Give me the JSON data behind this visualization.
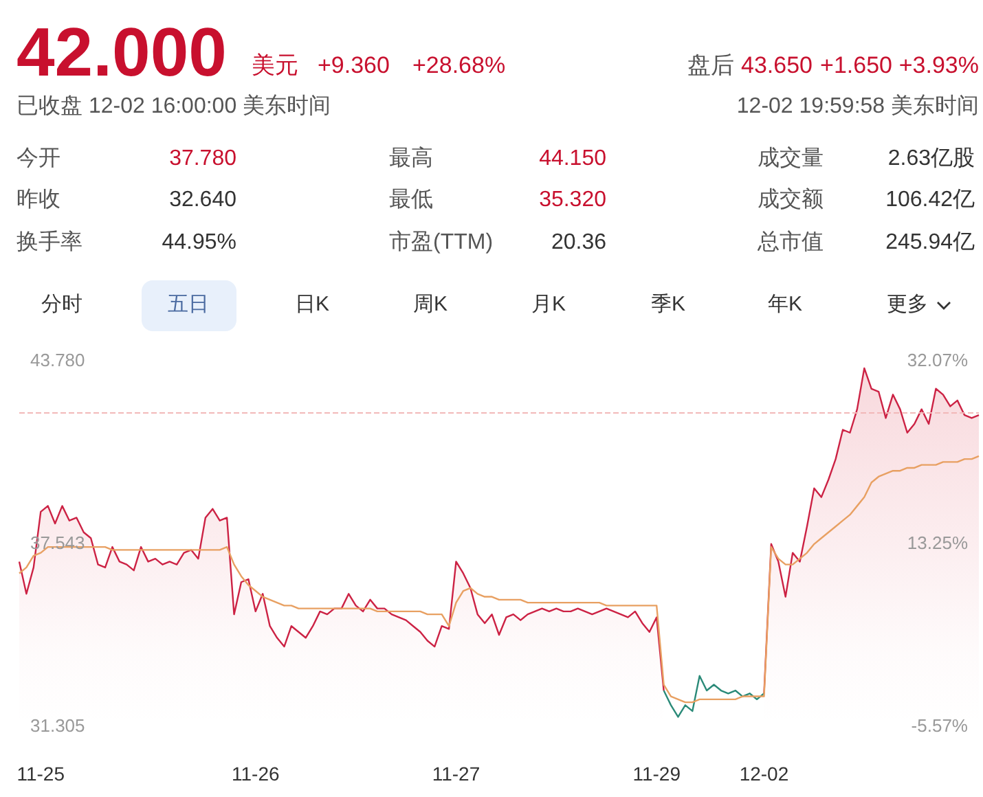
{
  "chart_data": {
    "type": "line",
    "title": "42.000",
    "annotations": [
      "美元",
      "+9.360",
      "+28.68%",
      "盘后",
      "43.650",
      "+1.650",
      "+3.93%",
      "已收盘 12-02 16:00:00 美东时间",
      "12-02 19:59:58 美东时间",
      "今开",
      "37.780",
      "最高",
      "44.150",
      "成交量",
      "2.63亿股",
      "昨收",
      "32.640",
      "最低",
      "35.320",
      "成交额",
      "106.42亿",
      "换手率",
      "44.95%",
      "市盈(TTM)",
      "20.36",
      "总市值",
      "245.94亿",
      "分时",
      "五日",
      "日K",
      "周K",
      "月K",
      "季K",
      "年K",
      "更多"
    ],
    "categories": [
      null,
      null,
      null,
      "11-25",
      null,
      null,
      null,
      null,
      null,
      null,
      null,
      null,
      null,
      null,
      null,
      null,
      null,
      null,
      null,
      null,
      null,
      null,
      null,
      null,
      null,
      null,
      null,
      null,
      null,
      null,
      null,
      null,
      null,
      "11-26",
      null,
      null,
      null,
      null,
      null,
      null,
      null,
      null,
      null,
      null,
      null,
      null,
      null,
      null,
      null,
      null,
      null,
      null,
      null,
      null,
      null,
      null,
      null,
      null,
      null,
      null,
      null,
      "11-27",
      null,
      null,
      null,
      null,
      null,
      null,
      null,
      null,
      null,
      null,
      null,
      null,
      null,
      null,
      null,
      null,
      null,
      null,
      null,
      null,
      null,
      null,
      null,
      null,
      null,
      null,
      null,
      "11-29",
      null,
      null,
      null,
      null,
      null,
      null,
      null,
      null,
      null,
      null,
      null,
      null,
      null,
      null,
      "12-02",
      null,
      null,
      null,
      null,
      null,
      null,
      null,
      null,
      null,
      null,
      null,
      null,
      null,
      null,
      null,
      null,
      null,
      null,
      null,
      null,
      null,
      null,
      null,
      null,
      null,
      null,
      null,
      null,
      null,
      null
    ],
    "series": [
      {
        "type": "area",
        "color": "#cc2244",
        "values": [
          36.9,
          35.8,
          36.7,
          38.6,
          38.8,
          38.2,
          38.8,
          38.3,
          38.4,
          37.9,
          37.7,
          36.8,
          36.7,
          37.4,
          36.9,
          36.8,
          36.6,
          37.4,
          36.9,
          37.0,
          36.8,
          36.9,
          36.8,
          37.2,
          37.3,
          37.0,
          38.4,
          38.7,
          38.3,
          38.4,
          35.1,
          36.2,
          36.3,
          35.2,
          35.8,
          34.7,
          34.3,
          34.0,
          34.7,
          34.5,
          34.3,
          34.7,
          35.2,
          35.1,
          35.3,
          35.3,
          35.8,
          35.4,
          35.2,
          35.6,
          35.3,
          35.3,
          35.1,
          35.0,
          34.9,
          34.7,
          34.5,
          34.2,
          34.0,
          34.7,
          34.6,
          36.9,
          36.5,
          36.0,
          35.1,
          34.8,
          35.1,
          34.4,
          35.0,
          35.1,
          34.9,
          35.1,
          35.2,
          35.3,
          35.2,
          35.3,
          35.2,
          35.2,
          35.3,
          35.2,
          35.1,
          35.2,
          35.3,
          35.2,
          35.1,
          35.0,
          35.2,
          34.8,
          34.5,
          35.0,
          32.5,
          null,
          null,
          null,
          null,
          null,
          null,
          null,
          null,
          null,
          null,
          null,
          null,
          null,
          32.4,
          37.5,
          36.9,
          35.7,
          37.2,
          36.9,
          38.1,
          39.4,
          39.1,
          39.7,
          40.4,
          41.4,
          41.3,
          42.1,
          43.5,
          42.8,
          42.7,
          41.8,
          42.6,
          42.1,
          41.3,
          41.6,
          42.1,
          41.6,
          42.8,
          42.6,
          42.2,
          42.4,
          41.9,
          41.8,
          41.9
        ]
      },
      {
        "type": "line",
        "color": "#2a8a78",
        "values": [
          null,
          null,
          null,
          null,
          null,
          null,
          null,
          null,
          null,
          null,
          null,
          null,
          null,
          null,
          null,
          null,
          null,
          null,
          null,
          null,
          null,
          null,
          null,
          null,
          null,
          null,
          null,
          null,
          null,
          null,
          null,
          null,
          null,
          null,
          null,
          null,
          null,
          null,
          null,
          null,
          null,
          null,
          null,
          null,
          null,
          null,
          null,
          null,
          null,
          null,
          null,
          null,
          null,
          null,
          null,
          null,
          null,
          null,
          null,
          null,
          null,
          null,
          null,
          null,
          null,
          null,
          null,
          null,
          null,
          null,
          null,
          null,
          null,
          null,
          null,
          null,
          null,
          null,
          null,
          null,
          null,
          null,
          null,
          null,
          null,
          null,
          null,
          null,
          null,
          null,
          32.5,
          32.0,
          31.6,
          32.0,
          31.8,
          33.0,
          32.5,
          32.7,
          32.5,
          32.4,
          32.5,
          32.3,
          32.4,
          32.2,
          32.4,
          null,
          null,
          null,
          null,
          null,
          null,
          null,
          null,
          null,
          null,
          null,
          null,
          null,
          null,
          null,
          null,
          null,
          null,
          null,
          null,
          null,
          null,
          null,
          null,
          null,
          null,
          null,
          null,
          null,
          null
        ]
      },
      {
        "type": "line",
        "color": "#e8a062",
        "values": [
          36.5,
          36.7,
          37.1,
          37.2,
          37.4,
          37.4,
          37.4,
          37.4,
          37.4,
          37.4,
          37.4,
          37.4,
          37.4,
          37.3,
          37.3,
          37.3,
          37.3,
          37.3,
          37.3,
          37.3,
          37.3,
          37.3,
          37.3,
          37.3,
          37.3,
          37.3,
          37.3,
          37.3,
          37.3,
          37.4,
          36.8,
          36.4,
          36.1,
          35.9,
          35.7,
          35.6,
          35.5,
          35.4,
          35.4,
          35.3,
          35.3,
          35.3,
          35.3,
          35.3,
          35.3,
          35.3,
          35.3,
          35.3,
          35.3,
          35.3,
          35.2,
          35.2,
          35.2,
          35.2,
          35.2,
          35.2,
          35.2,
          35.1,
          35.1,
          35.1,
          34.7,
          35.5,
          35.9,
          36.0,
          35.8,
          35.7,
          35.7,
          35.6,
          35.6,
          35.6,
          35.6,
          35.5,
          35.5,
          35.5,
          35.5,
          35.5,
          35.5,
          35.5,
          35.5,
          35.5,
          35.5,
          35.5,
          35.4,
          35.4,
          35.4,
          35.4,
          35.4,
          35.4,
          35.4,
          35.4,
          32.7,
          32.3,
          32.2,
          32.1,
          32.1,
          32.2,
          32.2,
          32.2,
          32.2,
          32.2,
          32.2,
          32.3,
          32.3,
          32.3,
          32.3,
          37.4,
          37.0,
          36.8,
          36.8,
          37.0,
          37.2,
          37.5,
          37.7,
          37.9,
          38.1,
          38.3,
          38.5,
          38.8,
          39.1,
          39.6,
          39.8,
          39.9,
          40.0,
          40.0,
          40.1,
          40.1,
          40.2,
          40.2,
          40.2,
          40.3,
          40.3,
          40.3,
          40.4,
          40.4,
          40.5
        ]
      }
    ],
    "ylim": [
      31.305,
      43.78
    ],
    "yticks": [
      {
        "value": 31.305,
        "label": "31.305"
      },
      37.543,
      {
        "value": 43.78,
        "label": "43.780"
      }
    ],
    "y2lim": [
      -5.57,
      32.07
    ],
    "y2ticks": [
      {
        "value": -5.57,
        "label": "-5.57%"
      },
      {
        "value": 13.25,
        "label": "13.25%"
      },
      {
        "value": 32.07,
        "label": "32.07%"
      }
    ],
    "ref_lines": [
      {
        "axis": "y",
        "value": 42,
        "color": "#f2b8b8",
        "line_style": "dashed"
      }
    ],
    "marker": "none"
  }
}
